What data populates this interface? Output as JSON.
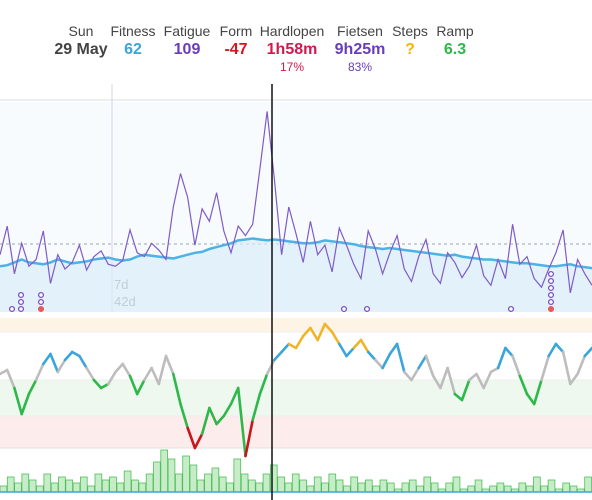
{
  "header": {
    "day": {
      "label": "Sun",
      "value": "29 May"
    },
    "fitness": {
      "label": "Fitness",
      "value": "62",
      "color": "#3aa5db"
    },
    "fatigue": {
      "label": "Fatigue",
      "value": "109",
      "color": "#6a3db8"
    },
    "form": {
      "label": "Form",
      "value": "-47",
      "color": "#d4171d"
    },
    "run": {
      "label": "Hardlopen",
      "value": "1h58m",
      "sub": "17%",
      "color": "#d01a4f"
    },
    "bike": {
      "label": "Fietsen",
      "value": "9h25m",
      "sub": "83%",
      "color": "#6a3db8"
    },
    "steps": {
      "label": "Steps",
      "value": "?",
      "color": "#f2b705"
    },
    "ramp": {
      "label": "Ramp",
      "value": "6.3",
      "color": "#2eb84a"
    }
  },
  "chart_annotations": {
    "tick_7d": "7d",
    "tick_42d": "42d"
  },
  "chart_data": [
    {
      "type": "line",
      "series": [
        {
          "values": [
            48,
            49,
            52,
            55,
            52,
            51,
            50,
            52,
            55,
            53,
            51,
            52,
            53,
            55,
            56,
            57,
            55,
            54,
            55,
            58,
            60,
            59,
            58,
            57,
            56,
            58,
            60,
            62,
            63,
            66,
            68,
            70,
            72,
            75,
            76,
            77,
            76,
            75,
            76,
            75,
            74,
            73,
            72,
            72,
            73,
            75,
            74,
            73,
            72,
            71,
            69,
            68,
            67,
            66,
            67,
            66,
            65,
            64,
            63,
            62,
            61,
            60,
            59,
            60,
            58,
            57,
            56,
            55,
            55,
            54,
            53,
            52,
            51,
            51,
            50,
            49,
            48,
            48,
            49,
            50,
            48,
            47,
            46
          ]
        },
        {
          "values": [
            60,
            90,
            40,
            72,
            48,
            55,
            85,
            30,
            60,
            45,
            52,
            70,
            44,
            58,
            64,
            50,
            48,
            54,
            86,
            62,
            58,
            72,
            65,
            55,
            110,
            145,
            120,
            70,
            108,
            95,
            125,
            85,
            62,
            90,
            80,
            92,
            150,
            210,
            140,
            60,
            110,
            82,
            52,
            95,
            60,
            70,
            42,
            88,
            70,
            50,
            35,
            85,
            66,
            40,
            62,
            80,
            45,
            32,
            58,
            76,
            40,
            30,
            62,
            52,
            36,
            48,
            70,
            38,
            28,
            55,
            35,
            92,
            50,
            58,
            35,
            26,
            45,
            62,
            86,
            20,
            55,
            40,
            28
          ]
        }
      ]
    },
    {
      "type": "line",
      "values": [
        -5,
        -3,
        -12,
        -25,
        -15,
        -8,
        0,
        5,
        -4,
        2,
        6,
        4,
        -2,
        -8,
        -12,
        -10,
        -4,
        0,
        -6,
        -15,
        -8,
        -2,
        -10,
        4,
        -5,
        -20,
        -32,
        -42,
        -35,
        -22,
        -30,
        -26,
        -20,
        -12,
        -46,
        -28,
        -15,
        -5,
        2,
        6,
        10,
        8,
        14,
        18,
        12,
        20,
        16,
        10,
        4,
        8,
        12,
        6,
        2,
        -2,
        5,
        10,
        -4,
        -8,
        -2,
        4,
        -6,
        -12,
        -2,
        -15,
        -18,
        -8,
        -5,
        -12,
        -4,
        -2,
        8,
        4,
        -6,
        -15,
        -20,
        -8,
        4,
        10,
        6,
        -10,
        -5,
        4,
        8
      ]
    },
    {
      "type": "bar",
      "values": [
        2,
        5,
        3,
        6,
        4,
        2,
        6,
        3,
        5,
        4,
        3,
        5,
        2,
        6,
        4,
        5,
        3,
        7,
        4,
        3,
        6,
        10,
        14,
        11,
        6,
        12,
        9,
        4,
        6,
        8,
        5,
        3,
        11,
        6,
        4,
        3,
        6,
        9,
        5,
        3,
        6,
        4,
        2,
        5,
        3,
        6,
        4,
        2,
        5,
        3,
        4,
        2,
        4,
        3,
        1,
        3,
        4,
        2,
        5,
        3,
        1,
        3,
        5,
        1,
        2,
        4,
        1,
        2,
        3,
        2,
        1,
        3,
        2,
        5,
        2,
        4,
        1,
        3,
        2,
        1,
        5
      ]
    }
  ]
}
